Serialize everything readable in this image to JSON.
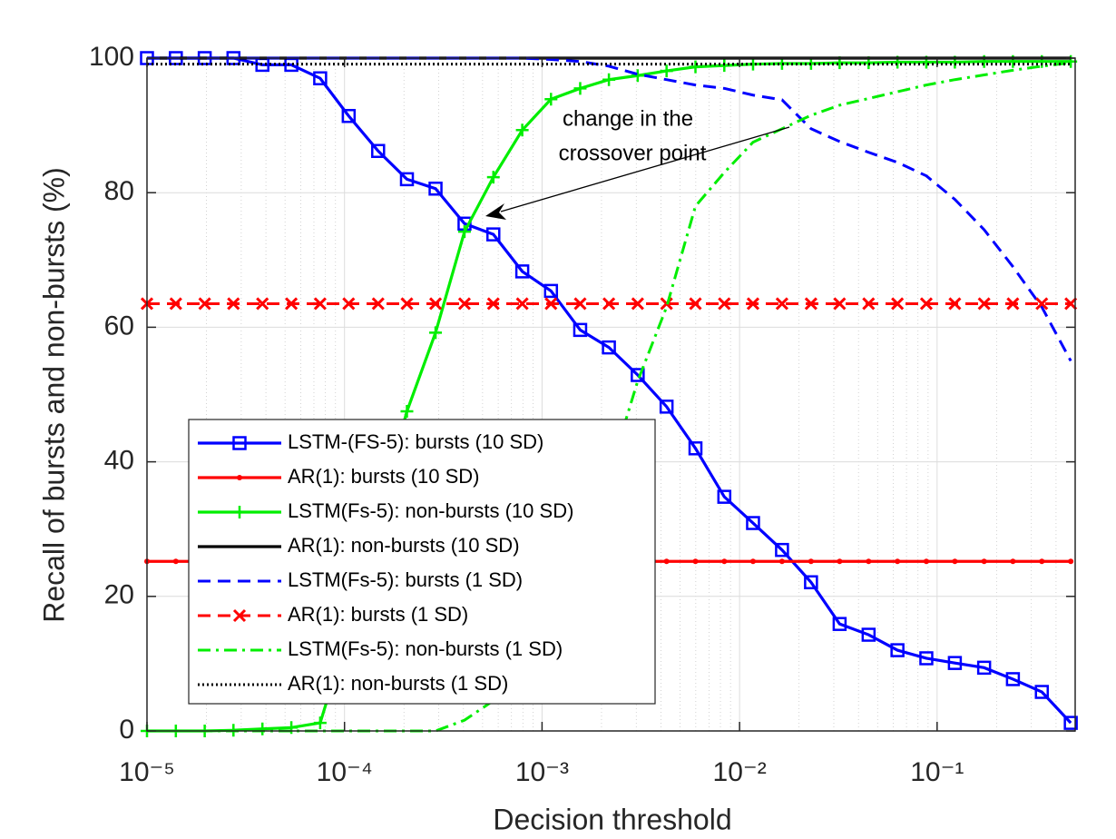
{
  "chart_data": {
    "type": "line",
    "xlabel": "Decision threshold",
    "ylabel": "Recall of bursts and non-bursts (%)",
    "xscale": "log",
    "xlim": [
      1e-05,
      0.5
    ],
    "ylim": [
      0,
      100
    ],
    "xticks": [
      {
        "value": 1e-05,
        "label": "10⁻⁵"
      },
      {
        "value": 0.0001,
        "label": "10⁻⁴"
      },
      {
        "value": 0.001,
        "label": "10⁻³"
      },
      {
        "value": 0.01,
        "label": "10⁻²"
      },
      {
        "value": 0.1,
        "label": "10⁻¹"
      }
    ],
    "xminorticks": [
      2e-05,
      3e-05,
      4e-05,
      5e-05,
      6e-05,
      7e-05,
      8e-05,
      9e-05,
      0.0002,
      0.0003,
      0.0004,
      0.0005,
      0.0006,
      0.0007,
      0.0008,
      0.0009,
      0.002,
      0.003,
      0.004,
      0.005,
      0.006,
      0.007,
      0.008,
      0.009,
      0.02,
      0.03,
      0.04,
      0.05,
      0.06,
      0.07,
      0.08,
      0.09,
      0.2,
      0.3,
      0.4
    ],
    "yticks": [
      0,
      20,
      40,
      60,
      80,
      100
    ],
    "grid": true,
    "minor_grid": true,
    "legend": "lower-left",
    "annotation": [
      "change in the",
      "crossover point"
    ],
    "x": [
      1e-05,
      1.4e-05,
      1.96e-05,
      2.74e-05,
      3.84e-05,
      5.38e-05,
      7.53e-05,
      0.000105,
      0.000148,
      0.000207,
      0.000289,
      0.000405,
      0.000567,
      0.000794,
      0.00111,
      0.00156,
      0.00218,
      0.00305,
      0.00427,
      0.00598,
      0.00837,
      0.0117,
      0.0164,
      0.023,
      0.0321,
      0.045,
      0.063,
      0.0882,
      0.123,
      0.173,
      0.242,
      0.339,
      0.475
    ],
    "series": [
      {
        "name": "LSTM-(FS-5): bursts (10 SD)",
        "color": "#0000ff",
        "linestyle": "solid",
        "marker": "square",
        "values": [
          100,
          100,
          100,
          100,
          99,
          99,
          97,
          91.4,
          86.2,
          82,
          80.6,
          75.4,
          73.8,
          68.3,
          65.4,
          59.6,
          57,
          52.9,
          48.2,
          42,
          34.8,
          30.9,
          26.9,
          22.1,
          15.9,
          14.3,
          12,
          10.8,
          10.1,
          9.4,
          7.7,
          5.8,
          1.2
        ]
      },
      {
        "name": "AR(1): bursts (10 SD)",
        "color": "#ff0000",
        "linestyle": "solid",
        "marker": "dot",
        "values": [
          25.2,
          25.2,
          25.2,
          25.2,
          25.2,
          25.2,
          25.2,
          25.2,
          25.2,
          25.2,
          25.2,
          25.2,
          25.2,
          25.2,
          25.2,
          25.2,
          25.2,
          25.2,
          25.2,
          25.2,
          25.2,
          25.2,
          25.2,
          25.2,
          25.2,
          25.2,
          25.2,
          25.2,
          25.2,
          25.2,
          25.2,
          25.2,
          25.2
        ]
      },
      {
        "name": "LSTM(Fs-5): non-bursts (10 SD)",
        "color": "#00ee00",
        "linestyle": "solid",
        "marker": "plus",
        "values": [
          0,
          0,
          0,
          0.1,
          0.3,
          0.5,
          1.2,
          15,
          32,
          47.5,
          59.2,
          74.2,
          82.3,
          89.3,
          93.9,
          95.5,
          96.8,
          97.4,
          98.1,
          98.7,
          98.9,
          99.1,
          99.2,
          99.2,
          99.3,
          99.3,
          99.4,
          99.4,
          99.4,
          99.5,
          99.5,
          99.5,
          99.5
        ]
      },
      {
        "name": "AR(1): non-bursts (10 SD)",
        "color": "#000000",
        "linestyle": "solid",
        "marker": "none",
        "values": [
          100,
          100,
          100,
          100,
          100,
          100,
          100,
          100,
          100,
          100,
          100,
          100,
          100,
          100,
          100,
          100,
          100,
          100,
          100,
          100,
          100,
          100,
          100,
          100,
          100,
          100,
          100,
          100,
          100,
          100,
          100,
          100,
          100
        ]
      },
      {
        "name": "LSTM(Fs-5): bursts (1 SD)",
        "color": "#0000ff",
        "linestyle": "dashed",
        "marker": "none",
        "values": [
          100,
          100,
          100,
          100,
          100,
          100,
          100,
          100,
          100,
          100,
          100,
          100,
          100,
          100,
          99.8,
          99.5,
          98.8,
          97.6,
          96.8,
          96,
          95.5,
          94.5,
          93.8,
          89.5,
          87.6,
          86,
          84.5,
          82.5,
          79,
          74.5,
          69,
          63,
          55
        ]
      },
      {
        "name": "AR(1): bursts (1 SD)",
        "color": "#ff0000",
        "linestyle": "dashed",
        "marker": "x",
        "values": [
          63.5,
          63.5,
          63.5,
          63.5,
          63.5,
          63.5,
          63.5,
          63.5,
          63.5,
          63.5,
          63.5,
          63.5,
          63.5,
          63.5,
          63.5,
          63.5,
          63.5,
          63.5,
          63.5,
          63.5,
          63.5,
          63.5,
          63.5,
          63.5,
          63.5,
          63.5,
          63.5,
          63.5,
          63.5,
          63.5,
          63.5,
          63.5,
          63.5
        ]
      },
      {
        "name": "LSTM(Fs-5): non-bursts (1 SD)",
        "color": "#00ee00",
        "linestyle": "dashdot",
        "marker": "none",
        "values": [
          0,
          0,
          0,
          0,
          0,
          0,
          0,
          0,
          0,
          0,
          0,
          1.6,
          4.5,
          10,
          18,
          27,
          38,
          52,
          63,
          78,
          83,
          87.5,
          89.5,
          91.5,
          93,
          94,
          95,
          96,
          96.8,
          97.5,
          98.2,
          98.8,
          99.3
        ]
      },
      {
        "name": "AR(1): non-bursts (1 SD)",
        "color": "#000000",
        "linestyle": "dotted",
        "marker": "none",
        "values": [
          99.1,
          99.1,
          99.1,
          99.1,
          99.1,
          99.1,
          99.1,
          99.1,
          99.1,
          99.1,
          99.1,
          99.1,
          99.1,
          99.1,
          99.1,
          99.1,
          99.1,
          99.1,
          99.1,
          99.1,
          99.1,
          99.1,
          99.1,
          99.1,
          99.1,
          99.1,
          99.1,
          99.1,
          99.1,
          99.1,
          99.1,
          99.1,
          99.1
        ]
      }
    ]
  }
}
